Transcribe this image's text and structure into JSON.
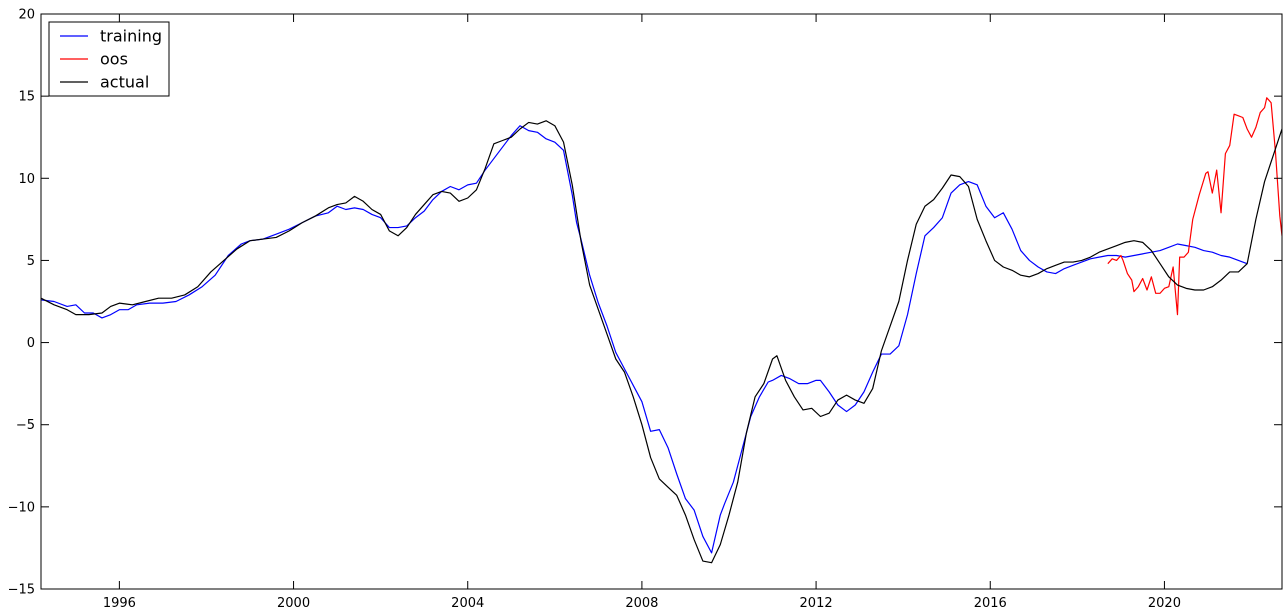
{
  "chart_data": {
    "type": "line",
    "title": "",
    "xlabel": "",
    "ylabel": "",
    "xlim": [
      1994.2,
      2022.7
    ],
    "ylim": [
      -15,
      20
    ],
    "x_ticks": [
      1996,
      2000,
      2004,
      2008,
      2012,
      2016,
      2020
    ],
    "y_ticks": [
      -15,
      -10,
      -5,
      0,
      5,
      10,
      15,
      20
    ],
    "grid": false,
    "legend_position": "top-left",
    "series": [
      {
        "name": "training",
        "color": "#0000ff",
        "points": [
          [
            1994.2,
            2.6
          ],
          [
            1994.5,
            2.5
          ],
          [
            1994.8,
            2.2
          ],
          [
            1995.0,
            2.3
          ],
          [
            1995.2,
            1.8
          ],
          [
            1995.4,
            1.8
          ],
          [
            1995.6,
            1.5
          ],
          [
            1995.8,
            1.7
          ],
          [
            1996.0,
            2.0
          ],
          [
            1996.2,
            2.0
          ],
          [
            1996.4,
            2.3
          ],
          [
            1996.7,
            2.4
          ],
          [
            1997.0,
            2.4
          ],
          [
            1997.3,
            2.5
          ],
          [
            1997.6,
            2.9
          ],
          [
            1997.9,
            3.4
          ],
          [
            1998.2,
            4.1
          ],
          [
            1998.5,
            5.3
          ],
          [
            1998.8,
            6.0
          ],
          [
            1999.0,
            6.2
          ],
          [
            1999.3,
            6.3
          ],
          [
            1999.6,
            6.6
          ],
          [
            1999.9,
            6.9
          ],
          [
            2000.2,
            7.3
          ],
          [
            2000.5,
            7.7
          ],
          [
            2000.8,
            7.9
          ],
          [
            2001.0,
            8.3
          ],
          [
            2001.2,
            8.1
          ],
          [
            2001.4,
            8.2
          ],
          [
            2001.6,
            8.1
          ],
          [
            2001.8,
            7.8
          ],
          [
            2002.0,
            7.6
          ],
          [
            2002.2,
            7.0
          ],
          [
            2002.4,
            7.0
          ],
          [
            2002.6,
            7.1
          ],
          [
            2002.8,
            7.6
          ],
          [
            2003.0,
            8.0
          ],
          [
            2003.2,
            8.7
          ],
          [
            2003.4,
            9.2
          ],
          [
            2003.6,
            9.5
          ],
          [
            2003.8,
            9.3
          ],
          [
            2004.0,
            9.6
          ],
          [
            2004.2,
            9.7
          ],
          [
            2004.4,
            10.5
          ],
          [
            2004.6,
            11.2
          ],
          [
            2004.8,
            11.9
          ],
          [
            2005.0,
            12.6
          ],
          [
            2005.2,
            13.2
          ],
          [
            2005.4,
            12.9
          ],
          [
            2005.6,
            12.8
          ],
          [
            2005.8,
            12.4
          ],
          [
            2006.0,
            12.2
          ],
          [
            2006.2,
            11.7
          ],
          [
            2006.4,
            9.0
          ],
          [
            2006.5,
            7.3
          ],
          [
            2006.6,
            6.3
          ],
          [
            2006.8,
            4.1
          ],
          [
            2007.0,
            2.4
          ],
          [
            2007.2,
            1.0
          ],
          [
            2007.4,
            -0.6
          ],
          [
            2007.6,
            -1.6
          ],
          [
            2007.8,
            -2.6
          ],
          [
            2008.0,
            -3.6
          ],
          [
            2008.2,
            -5.4
          ],
          [
            2008.4,
            -5.3
          ],
          [
            2008.6,
            -6.4
          ],
          [
            2008.8,
            -8.0
          ],
          [
            2009.0,
            -9.5
          ],
          [
            2009.2,
            -10.2
          ],
          [
            2009.4,
            -11.8
          ],
          [
            2009.6,
            -12.8
          ],
          [
            2009.8,
            -10.5
          ],
          [
            2009.9,
            -9.8
          ],
          [
            2010.1,
            -8.5
          ],
          [
            2010.3,
            -6.5
          ],
          [
            2010.5,
            -4.5
          ],
          [
            2010.7,
            -3.3
          ],
          [
            2010.9,
            -2.4
          ],
          [
            2011.0,
            -2.3
          ],
          [
            2011.2,
            -2.0
          ],
          [
            2011.4,
            -2.2
          ],
          [
            2011.6,
            -2.5
          ],
          [
            2011.8,
            -2.5
          ],
          [
            2012.0,
            -2.3
          ],
          [
            2012.1,
            -2.3
          ],
          [
            2012.3,
            -3.0
          ],
          [
            2012.5,
            -3.8
          ],
          [
            2012.7,
            -4.2
          ],
          [
            2012.9,
            -3.8
          ],
          [
            2013.1,
            -3.0
          ],
          [
            2013.3,
            -1.8
          ],
          [
            2013.5,
            -0.7
          ],
          [
            2013.7,
            -0.7
          ],
          [
            2013.9,
            -0.2
          ],
          [
            2014.1,
            1.7
          ],
          [
            2014.3,
            4.2
          ],
          [
            2014.5,
            6.5
          ],
          [
            2014.7,
            7.0
          ],
          [
            2014.9,
            7.6
          ],
          [
            2015.1,
            9.1
          ],
          [
            2015.3,
            9.6
          ],
          [
            2015.5,
            9.8
          ],
          [
            2015.7,
            9.6
          ],
          [
            2015.9,
            8.3
          ],
          [
            2016.1,
            7.6
          ],
          [
            2016.3,
            7.9
          ],
          [
            2016.5,
            6.9
          ],
          [
            2016.7,
            5.6
          ],
          [
            2016.9,
            5.0
          ],
          [
            2017.1,
            4.6
          ],
          [
            2017.3,
            4.3
          ],
          [
            2017.5,
            4.2
          ],
          [
            2017.7,
            4.5
          ],
          [
            2017.9,
            4.7
          ],
          [
            2018.1,
            4.9
          ],
          [
            2018.3,
            5.1
          ],
          [
            2018.5,
            5.2
          ],
          [
            2018.7,
            5.3
          ],
          [
            2018.9,
            5.3
          ],
          [
            2019.1,
            5.2
          ],
          [
            2019.3,
            5.3
          ],
          [
            2019.5,
            5.4
          ],
          [
            2019.7,
            5.5
          ],
          [
            2019.9,
            5.6
          ],
          [
            2020.1,
            5.8
          ],
          [
            2020.3,
            6.0
          ],
          [
            2020.5,
            5.9
          ],
          [
            2020.7,
            5.8
          ],
          [
            2020.9,
            5.6
          ],
          [
            2021.1,
            5.5
          ],
          [
            2021.3,
            5.3
          ],
          [
            2021.5,
            5.2
          ],
          [
            2021.7,
            5.0
          ],
          [
            2021.9,
            4.8
          ]
        ]
      },
      {
        "name": "oos",
        "color": "#ff0000",
        "points": [
          [
            2018.7,
            4.8
          ],
          [
            2018.8,
            5.1
          ],
          [
            2018.9,
            5.0
          ],
          [
            2019.0,
            5.3
          ],
          [
            2019.05,
            5.0
          ],
          [
            2019.15,
            4.2
          ],
          [
            2019.25,
            3.8
          ],
          [
            2019.3,
            3.1
          ],
          [
            2019.4,
            3.4
          ],
          [
            2019.5,
            3.9
          ],
          [
            2019.6,
            3.2
          ],
          [
            2019.7,
            4.0
          ],
          [
            2019.8,
            3.0
          ],
          [
            2019.9,
            3.0
          ],
          [
            2020.0,
            3.3
          ],
          [
            2020.1,
            3.4
          ],
          [
            2020.2,
            4.6
          ],
          [
            2020.3,
            1.7
          ],
          [
            2020.35,
            5.2
          ],
          [
            2020.45,
            5.2
          ],
          [
            2020.55,
            5.5
          ],
          [
            2020.65,
            7.5
          ],
          [
            2020.8,
            9.0
          ],
          [
            2020.95,
            10.3
          ],
          [
            2021.0,
            10.4
          ],
          [
            2021.1,
            9.1
          ],
          [
            2021.2,
            10.5
          ],
          [
            2021.3,
            7.9
          ],
          [
            2021.4,
            11.5
          ],
          [
            2021.5,
            12.0
          ],
          [
            2021.6,
            13.9
          ],
          [
            2021.7,
            13.8
          ],
          [
            2021.8,
            13.7
          ],
          [
            2021.9,
            13.0
          ],
          [
            2022.0,
            12.5
          ],
          [
            2022.1,
            13.1
          ],
          [
            2022.2,
            14.0
          ],
          [
            2022.3,
            14.3
          ],
          [
            2022.35,
            14.9
          ],
          [
            2022.45,
            14.6
          ],
          [
            2022.55,
            11.6
          ],
          [
            2022.65,
            7.7
          ],
          [
            2022.7,
            6.5
          ]
        ]
      },
      {
        "name": "actual",
        "color": "#000000",
        "points": [
          [
            1994.2,
            2.7
          ],
          [
            1994.5,
            2.3
          ],
          [
            1994.8,
            2.0
          ],
          [
            1995.0,
            1.7
          ],
          [
            1995.3,
            1.7
          ],
          [
            1995.6,
            1.8
          ],
          [
            1995.8,
            2.2
          ],
          [
            1996.0,
            2.4
          ],
          [
            1996.3,
            2.3
          ],
          [
            1996.6,
            2.5
          ],
          [
            1996.9,
            2.7
          ],
          [
            1997.2,
            2.7
          ],
          [
            1997.5,
            2.9
          ],
          [
            1997.8,
            3.4
          ],
          [
            1998.1,
            4.3
          ],
          [
            1998.4,
            5.0
          ],
          [
            1998.7,
            5.7
          ],
          [
            1999.0,
            6.2
          ],
          [
            1999.3,
            6.3
          ],
          [
            1999.6,
            6.4
          ],
          [
            1999.9,
            6.8
          ],
          [
            2000.2,
            7.3
          ],
          [
            2000.5,
            7.7
          ],
          [
            2000.8,
            8.2
          ],
          [
            2001.0,
            8.4
          ],
          [
            2001.2,
            8.5
          ],
          [
            2001.4,
            8.9
          ],
          [
            2001.6,
            8.6
          ],
          [
            2001.8,
            8.1
          ],
          [
            2002.0,
            7.8
          ],
          [
            2002.2,
            6.8
          ],
          [
            2002.4,
            6.5
          ],
          [
            2002.6,
            7.0
          ],
          [
            2002.8,
            7.8
          ],
          [
            2003.0,
            8.4
          ],
          [
            2003.2,
            9.0
          ],
          [
            2003.4,
            9.2
          ],
          [
            2003.6,
            9.1
          ],
          [
            2003.8,
            8.6
          ],
          [
            2004.0,
            8.8
          ],
          [
            2004.2,
            9.3
          ],
          [
            2004.4,
            10.6
          ],
          [
            2004.6,
            12.1
          ],
          [
            2004.8,
            12.3
          ],
          [
            2005.0,
            12.5
          ],
          [
            2005.2,
            13.0
          ],
          [
            2005.4,
            13.4
          ],
          [
            2005.6,
            13.3
          ],
          [
            2005.8,
            13.5
          ],
          [
            2006.0,
            13.2
          ],
          [
            2006.2,
            12.2
          ],
          [
            2006.4,
            9.6
          ],
          [
            2006.6,
            6.2
          ],
          [
            2006.8,
            3.5
          ],
          [
            2007.0,
            2.0
          ],
          [
            2007.2,
            0.5
          ],
          [
            2007.4,
            -1.0
          ],
          [
            2007.6,
            -1.8
          ],
          [
            2007.8,
            -3.3
          ],
          [
            2008.0,
            -5.0
          ],
          [
            2008.2,
            -7.0
          ],
          [
            2008.4,
            -8.3
          ],
          [
            2008.6,
            -8.8
          ],
          [
            2008.8,
            -9.3
          ],
          [
            2009.0,
            -10.5
          ],
          [
            2009.2,
            -12.0
          ],
          [
            2009.4,
            -13.3
          ],
          [
            2009.6,
            -13.4
          ],
          [
            2009.8,
            -12.3
          ],
          [
            2010.0,
            -10.5
          ],
          [
            2010.2,
            -8.5
          ],
          [
            2010.4,
            -5.5
          ],
          [
            2010.6,
            -3.3
          ],
          [
            2010.8,
            -2.5
          ],
          [
            2011.0,
            -1.0
          ],
          [
            2011.1,
            -0.8
          ],
          [
            2011.3,
            -2.3
          ],
          [
            2011.5,
            -3.3
          ],
          [
            2011.7,
            -4.1
          ],
          [
            2011.9,
            -4.0
          ],
          [
            2012.1,
            -4.5
          ],
          [
            2012.3,
            -4.3
          ],
          [
            2012.5,
            -3.5
          ],
          [
            2012.7,
            -3.2
          ],
          [
            2012.9,
            -3.5
          ],
          [
            2013.1,
            -3.7
          ],
          [
            2013.3,
            -2.8
          ],
          [
            2013.5,
            -0.5
          ],
          [
            2013.7,
            1.0
          ],
          [
            2013.9,
            2.5
          ],
          [
            2014.1,
            5.0
          ],
          [
            2014.3,
            7.2
          ],
          [
            2014.5,
            8.3
          ],
          [
            2014.7,
            8.7
          ],
          [
            2014.9,
            9.4
          ],
          [
            2015.1,
            10.2
          ],
          [
            2015.3,
            10.1
          ],
          [
            2015.5,
            9.5
          ],
          [
            2015.7,
            7.5
          ],
          [
            2015.9,
            6.2
          ],
          [
            2016.1,
            5.0
          ],
          [
            2016.3,
            4.6
          ],
          [
            2016.5,
            4.4
          ],
          [
            2016.7,
            4.1
          ],
          [
            2016.9,
            4.0
          ],
          [
            2017.1,
            4.2
          ],
          [
            2017.3,
            4.5
          ],
          [
            2017.5,
            4.7
          ],
          [
            2017.7,
            4.9
          ],
          [
            2017.9,
            4.9
          ],
          [
            2018.1,
            5.0
          ],
          [
            2018.3,
            5.2
          ],
          [
            2018.5,
            5.5
          ],
          [
            2018.7,
            5.7
          ],
          [
            2018.9,
            5.9
          ],
          [
            2019.1,
            6.1
          ],
          [
            2019.3,
            6.2
          ],
          [
            2019.5,
            6.1
          ],
          [
            2019.7,
            5.6
          ],
          [
            2019.9,
            4.8
          ],
          [
            2020.1,
            4.0
          ],
          [
            2020.3,
            3.5
          ],
          [
            2020.5,
            3.3
          ],
          [
            2020.7,
            3.2
          ],
          [
            2020.9,
            3.2
          ],
          [
            2021.1,
            3.4
          ],
          [
            2021.3,
            3.8
          ],
          [
            2021.5,
            4.3
          ],
          [
            2021.7,
            4.3
          ],
          [
            2021.9,
            4.8
          ],
          [
            2022.1,
            7.5
          ],
          [
            2022.3,
            9.8
          ],
          [
            2022.5,
            11.4
          ],
          [
            2022.7,
            13.0
          ]
        ]
      }
    ]
  }
}
